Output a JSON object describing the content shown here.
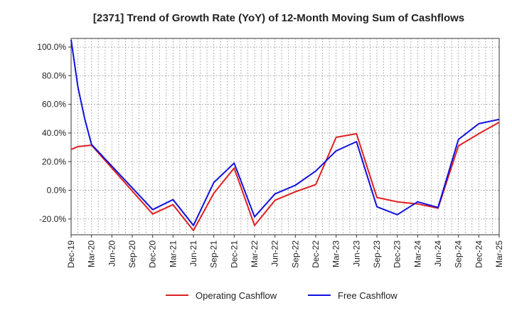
{
  "chart_data": {
    "type": "line",
    "title": "[2371]  Trend of Growth Rate (YoY) of 12-Month Moving Sum of Cashflows",
    "xlabel": "",
    "ylabel": "",
    "ylim": [
      -31,
      106
    ],
    "y_ticks": [
      100,
      80,
      60,
      40,
      20,
      0,
      -20
    ],
    "y_tick_labels": [
      "100.0%",
      "80.0%",
      "60.0%",
      "40.0%",
      "20.0%",
      "0.0%",
      "-20.0%"
    ],
    "x_tick_labels": [
      "Dec-19",
      "Mar-20",
      "Jun-20",
      "Sep-20",
      "Dec-20",
      "Mar-21",
      "Jun-21",
      "Sep-21",
      "Dec-21",
      "Mar-22",
      "Jun-22",
      "Sep-22",
      "Dec-22",
      "Mar-23",
      "Jun-23",
      "Sep-23",
      "Dec-23",
      "Mar-24",
      "Jun-24",
      "Sep-24",
      "Dec-24",
      "Mar-25"
    ],
    "grid": true,
    "legend_position": "bottom",
    "series": [
      {
        "name": "Operating Cashflow",
        "color": "#e02020",
        "points": [
          [
            0,
            28.5
          ],
          [
            1,
            30.5
          ],
          [
            3,
            31.5
          ],
          [
            12,
            -16.5
          ],
          [
            15,
            -10
          ],
          [
            18,
            -28
          ],
          [
            21,
            -2
          ],
          [
            24,
            15.5
          ],
          [
            27,
            -24.5
          ],
          [
            30,
            -7
          ],
          [
            33,
            -1
          ],
          [
            36,
            4
          ],
          [
            39,
            37
          ],
          [
            42,
            39.5
          ],
          [
            45,
            -5
          ],
          [
            48,
            -8
          ],
          [
            51,
            -9.5
          ],
          [
            54,
            -12.5
          ],
          [
            57,
            31
          ],
          [
            60,
            39.5
          ],
          [
            63,
            47.5
          ]
        ]
      },
      {
        "name": "Free Cashflow",
        "color": "#1010e0",
        "points": [
          [
            0,
            105
          ],
          [
            1,
            72
          ],
          [
            2,
            50
          ],
          [
            3,
            32
          ],
          [
            12,
            -13.5
          ],
          [
            15,
            -6.5
          ],
          [
            18,
            -24.5
          ],
          [
            21,
            5.5
          ],
          [
            24,
            19
          ],
          [
            27,
            -18.5
          ],
          [
            30,
            -2.5
          ],
          [
            33,
            3.5
          ],
          [
            36,
            13.5
          ],
          [
            39,
            27.5
          ],
          [
            42,
            34
          ],
          [
            45,
            -11.5
          ],
          [
            48,
            -17
          ],
          [
            51,
            -8
          ],
          [
            54,
            -12
          ],
          [
            57,
            35.5
          ],
          [
            60,
            46.5
          ],
          [
            63,
            49.5
          ]
        ]
      }
    ]
  }
}
